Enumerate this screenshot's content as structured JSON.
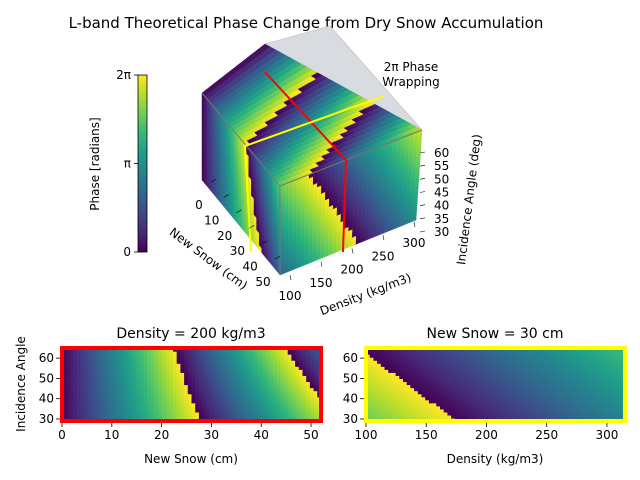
{
  "title": "L-band Theoretical Phase Change from Dry Snow Accumulation",
  "colors": {
    "viridis": [
      "#440154",
      "#482878",
      "#3e4989",
      "#31688e",
      "#26828e",
      "#1f9e89",
      "#35b779",
      "#6ece58",
      "#b5de2b",
      "#fde725"
    ],
    "slice_density_border": "#ff0000",
    "slice_snow_border": "#ffff00"
  },
  "colorbar": {
    "label": "Phase [radians]",
    "ticks": [
      {
        "value": 0,
        "label": "0"
      },
      {
        "value": 3.14159,
        "label": "π"
      },
      {
        "value": 6.28318,
        "label": "2π"
      }
    ]
  },
  "cube": {
    "annotation_line1": "2π Phase",
    "annotation_line2": "Wrapping",
    "x_axis": {
      "label": "New Snow (cm)",
      "ticks": [
        "0",
        "10",
        "20",
        "30",
        "40",
        "50"
      ]
    },
    "y_axis": {
      "label": "Density (kg/m3)",
      "ticks": [
        "100",
        "150",
        "200",
        "250",
        "300"
      ]
    },
    "z_axis": {
      "label": "Incidence Angle (deg)",
      "ticks": [
        "30",
        "35",
        "40",
        "45",
        "50",
        "55",
        "60"
      ]
    }
  },
  "chart_data": [
    {
      "type": "heatmap",
      "title": "Density = 200 kg/m3",
      "xlabel": "New Snow (cm)",
      "ylabel": "Incidence Angle",
      "xlim": [
        0,
        52
      ],
      "ylim": [
        29,
        65
      ],
      "xticks": [
        0,
        10,
        20,
        30,
        40,
        50
      ],
      "yticks": [
        30,
        40,
        50,
        60
      ],
      "fixed_density": 200,
      "wrap_boundary_new_snow_at_angle": [
        [
          64,
          36
        ],
        [
          55,
          41
        ],
        [
          47,
          52
        ]
      ],
      "phase_range": [
        0,
        6.28318
      ]
    },
    {
      "type": "heatmap",
      "title": "New Snow = 30 cm",
      "xlabel": "Density (kg/m3)",
      "ylabel": "",
      "xlim": [
        100,
        315
      ],
      "ylim": [
        29,
        65
      ],
      "xticks": [
        100,
        150,
        200,
        250,
        300
      ],
      "yticks": [
        30,
        40,
        50,
        60
      ],
      "fixed_new_snow": 30,
      "wrap_boundary_density_at_angle": [
        [
          64,
          300
        ],
        [
          60,
          315
        ]
      ],
      "phase_range": [
        0,
        6.28318
      ]
    }
  ]
}
